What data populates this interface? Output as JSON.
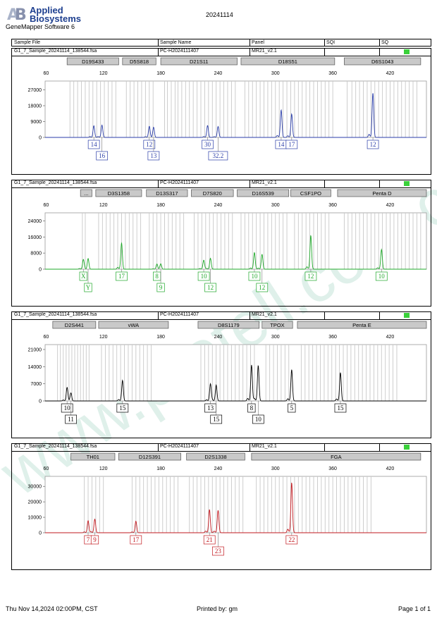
{
  "header": {
    "logo_line1": "Applied",
    "logo_line2": "Biosystems",
    "software": "GeneMapper Software 6",
    "title": "20241114",
    "watermark": "www.protell.com.cn"
  },
  "table_header": {
    "sample_file": "Sample File",
    "sample_name": "Sample Name",
    "panel": "Panel",
    "sqi": "SQI",
    "sq": "SQ"
  },
  "footer": {
    "date": "Thu Nov 14,2024 02:00PM, CST",
    "printed_by": "Printed by: gm",
    "page": "Page 1 of 1"
  },
  "colors": {
    "blue": "#2b3ea8",
    "green": "#1fa82a",
    "black": "#000000",
    "red": "#c2191f",
    "sq": "#3ad13a"
  },
  "chart_data": [
    {
      "type": "line",
      "sample_file": "G1_7_Sample_20241114_138544.fsa",
      "sample_name": "PC-H2024111407",
      "panel": "MR21_v2.1",
      "color": "#2b3ea8",
      "x_ticks": [
        60,
        120,
        180,
        240,
        300,
        360,
        420
      ],
      "xlim": [
        59,
        458
      ],
      "y_ticks": [
        0,
        9000,
        18000,
        27000
      ],
      "y_tick_labels": [
        "0",
        "9000",
        "18000",
        "27000"
      ],
      "ylim": [
        0,
        32000
      ],
      "markers": [
        {
          "name": "D19S433",
          "start": 82,
          "end": 136
        },
        {
          "name": "D5S818",
          "start": 140,
          "end": 175
        },
        {
          "name": "D21S11",
          "start": 180,
          "end": 260
        },
        {
          "name": "D18S51",
          "start": 264,
          "end": 362
        },
        {
          "name": "D6S1043",
          "start": 372,
          "end": 452
        }
      ],
      "bins": [
        [
          85,
          89,
          93,
          97,
          101,
          105,
          109,
          113,
          117,
          121,
          125,
          129,
          133
        ],
        [
          144,
          148,
          152,
          156,
          160,
          164,
          168,
          172
        ],
        [
          184,
          187,
          191,
          195,
          198,
          202,
          206,
          210,
          214,
          218,
          222,
          226,
          230,
          234,
          238,
          242,
          246,
          250,
          254,
          258
        ],
        [
          268,
          272,
          276,
          280,
          284,
          288,
          292,
          296,
          300,
          304,
          308,
          312,
          316,
          320,
          324,
          328,
          332,
          336,
          340,
          344,
          348,
          352,
          356,
          360
        ],
        [
          375,
          380,
          384,
          388,
          392,
          396,
          400,
          404,
          408,
          412,
          416,
          420,
          424,
          428,
          432,
          436,
          440,
          444,
          448
        ]
      ],
      "peaks": [
        {
          "x": 110,
          "y": 6600,
          "label": "14",
          "row": 0
        },
        {
          "x": 118.5,
          "y": 7000,
          "label": "16",
          "row": 1
        },
        {
          "x": 168,
          "y": 6000,
          "label": "12",
          "row": 0
        },
        {
          "x": 172.5,
          "y": 5800,
          "label": "13",
          "row": 1
        },
        {
          "x": 229,
          "y": 6800,
          "label": "30",
          "row": 0
        },
        {
          "x": 240,
          "y": 6200,
          "label": "32.2",
          "row": 1
        },
        {
          "x": 306,
          "y": 15600,
          "label": "14",
          "row": 0
        },
        {
          "x": 317,
          "y": 13300,
          "label": "17",
          "row": 0
        },
        {
          "x": 402,
          "y": 25200,
          "label": "12",
          "row": 0
        }
      ]
    },
    {
      "type": "line",
      "sample_file": "G1_7_Sample_20241114_138544.fsa",
      "sample_name": "PC-H2024111407",
      "panel": "MR21_v2.1",
      "color": "#1fa82a",
      "x_ticks": [
        60,
        120,
        180,
        240,
        300,
        360,
        420
      ],
      "xlim": [
        59,
        458
      ],
      "y_ticks": [
        0,
        8000,
        16000,
        24000
      ],
      "y_tick_labels": [
        "0",
        "8000",
        "16000",
        "24000"
      ],
      "ylim": [
        0,
        28000
      ],
      "markers": [
        {
          "name": "...",
          "start": 96,
          "end": 108
        },
        {
          "name": "D3S1358",
          "start": 112,
          "end": 160
        },
        {
          "name": "D13S317",
          "start": 165,
          "end": 208
        },
        {
          "name": "D7S820",
          "start": 212,
          "end": 256
        },
        {
          "name": "D16S539",
          "start": 260,
          "end": 314
        },
        {
          "name": "CSF1PO",
          "start": 316,
          "end": 358
        },
        {
          "name": "Penta D",
          "start": 365,
          "end": 458
        }
      ],
      "bins": [
        [
          98,
          101
        ],
        [
          115,
          119,
          123,
          127,
          131,
          135,
          139,
          143,
          147,
          151,
          155,
          159
        ],
        [
          168,
          172,
          176,
          180,
          184,
          188,
          192,
          196,
          200,
          204
        ],
        [
          215,
          219,
          223,
          227,
          231,
          235,
          239,
          243,
          247,
          251,
          255
        ],
        [
          264,
          268,
          272,
          276,
          280,
          284,
          288,
          292,
          296,
          300,
          304,
          308,
          312
        ],
        [
          320,
          324,
          328,
          332,
          336,
          340,
          344,
          348,
          352,
          356
        ],
        [
          372,
          376,
          380,
          384,
          388,
          392,
          396,
          400,
          404,
          408,
          412,
          416,
          420,
          424,
          428,
          432,
          436,
          440,
          444,
          448,
          452
        ]
      ],
      "peaks": [
        {
          "x": 99,
          "y": 4700,
          "label": "X",
          "row": 0
        },
        {
          "x": 104,
          "y": 5300,
          "label": "Y",
          "row": 1
        },
        {
          "x": 139,
          "y": 13000,
          "label": "17",
          "row": 0
        },
        {
          "x": 176,
          "y": 2400,
          "label": "8",
          "row": 0
        },
        {
          "x": 180,
          "y": 2700,
          "label": "9",
          "row": 1
        },
        {
          "x": 225,
          "y": 4500,
          "label": "10",
          "row": 0
        },
        {
          "x": 232,
          "y": 5400,
          "label": "12",
          "row": 1
        },
        {
          "x": 278,
          "y": 8300,
          "label": "10",
          "row": 0
        },
        {
          "x": 286,
          "y": 7400,
          "label": "12",
          "row": 1
        },
        {
          "x": 337,
          "y": 16800,
          "label": "12",
          "row": 0
        },
        {
          "x": 411,
          "y": 9800,
          "label": "10",
          "row": 0
        }
      ]
    },
    {
      "type": "line",
      "sample_file": "G1_7_Sample_20241114_138544.fsa",
      "sample_name": "PC-H2024111407",
      "panel": "MR21_v2.1",
      "color": "#000000",
      "x_ticks": [
        60,
        120,
        180,
        240,
        300,
        360,
        420
      ],
      "xlim": [
        59,
        458
      ],
      "y_ticks": [
        0,
        7000,
        14000,
        21000
      ],
      "y_tick_labels": [
        "0",
        "7000",
        "14000",
        "21000"
      ],
      "ylim": [
        0,
        23000
      ],
      "markers": [
        {
          "name": "D2S441",
          "start": 67,
          "end": 112
        },
        {
          "name": "vWA",
          "start": 115,
          "end": 188
        },
        {
          "name": "D8S1179",
          "start": 219,
          "end": 283
        },
        {
          "name": "TPOX",
          "start": 286,
          "end": 318
        },
        {
          "name": "Penta E",
          "start": 323,
          "end": 458
        }
      ],
      "bins": [
        [
          72,
          75,
          78,
          81,
          84,
          87,
          90,
          93,
          96,
          99,
          102,
          105
        ],
        [
          118,
          122,
          126,
          130,
          134,
          138,
          142,
          146,
          150,
          154,
          158,
          162,
          166,
          170
        ],
        [
          222,
          226,
          230,
          234,
          238,
          242,
          246,
          250,
          254,
          258,
          262,
          266,
          270,
          274,
          278
        ],
        [
          290,
          294,
          298,
          302,
          306,
          310,
          314
        ],
        [
          327,
          331,
          335,
          339,
          343,
          347,
          351,
          355,
          359,
          363,
          367,
          371,
          375,
          379,
          383,
          387,
          391,
          395,
          399,
          403,
          407,
          411,
          415,
          419,
          423,
          427
        ]
      ],
      "peaks": [
        {
          "x": 82,
          "y": 5300,
          "label": "10",
          "row": 0
        },
        {
          "x": 86,
          "y": 3300,
          "label": "11",
          "row": 1
        },
        {
          "x": 140,
          "y": 8400,
          "label": "15",
          "row": 0
        },
        {
          "x": 232,
          "y": 7000,
          "label": "13",
          "row": 0
        },
        {
          "x": 238,
          "y": 6500,
          "label": "15",
          "row": 1
        },
        {
          "x": 275,
          "y": 14700,
          "label": "8",
          "row": 0
        },
        {
          "x": 282,
          "y": 14500,
          "label": "10",
          "row": 1
        },
        {
          "x": 317,
          "y": 12800,
          "label": "5",
          "row": 0
        },
        {
          "x": 368,
          "y": 11600,
          "label": "15",
          "row": 0
        }
      ]
    },
    {
      "type": "line",
      "sample_file": "G1_7_Sample_20241114_138544.fsa",
      "sample_name": "PC-H2024111407",
      "panel": "MR21_v2.1",
      "color": "#c2191f",
      "x_ticks": [
        60,
        120,
        180,
        240,
        300,
        360,
        420
      ],
      "xlim": [
        59,
        458
      ],
      "y_ticks": [
        0,
        10000,
        20000,
        30000
      ],
      "y_tick_labels": [
        "0",
        "10000",
        "20000",
        "30000"
      ],
      "ylim": [
        0,
        36500
      ],
      "markers": [
        {
          "name": "TH01",
          "start": 86,
          "end": 132
        },
        {
          "name": "D12S391",
          "start": 136,
          "end": 201
        },
        {
          "name": "D2S1338",
          "start": 207,
          "end": 268
        },
        {
          "name": "FGA",
          "start": 275,
          "end": 452
        }
      ],
      "bins": [
        [
          100,
          104,
          108,
          112,
          116,
          120
        ],
        [
          150,
          154,
          158,
          162,
          166,
          170,
          174,
          178,
          182,
          186,
          190,
          194,
          198
        ],
        [
          210,
          214,
          218,
          222,
          226,
          230,
          234,
          238,
          242,
          246,
          250,
          254,
          258,
          262,
          266
        ],
        [
          280,
          284,
          288,
          292,
          296,
          300,
          304,
          308,
          312,
          316,
          320,
          324,
          328,
          332,
          336,
          340,
          344,
          348,
          352,
          356,
          360,
          364,
          368,
          372,
          376,
          380,
          384,
          388,
          392,
          396,
          400
        ]
      ],
      "peaks": [
        {
          "x": 104,
          "y": 7800,
          "label": "7",
          "row": 0
        },
        {
          "x": 111,
          "y": 8900,
          "label": "9",
          "row": 0
        },
        {
          "x": 154,
          "y": 7500,
          "label": "17",
          "row": 0
        },
        {
          "x": 231,
          "y": 15000,
          "label": "21",
          "row": 0
        },
        {
          "x": 240,
          "y": 14500,
          "label": "23",
          "row": 1
        },
        {
          "x": 317,
          "y": 32500,
          "label": "22",
          "row": 0
        }
      ]
    }
  ]
}
